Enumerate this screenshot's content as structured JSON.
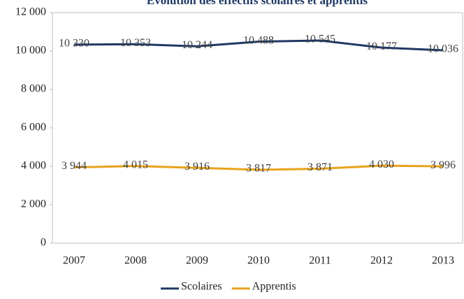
{
  "chart_data": {
    "type": "line",
    "title": "Évolution des effectifs scolaires et apprentis",
    "categories": [
      "2007",
      "2008",
      "2009",
      "2010",
      "2011",
      "2012",
      "2013"
    ],
    "series": [
      {
        "name": "Scolaires",
        "color": "#1f3864",
        "values": [
          10330,
          10353,
          10244,
          10488,
          10545,
          10177,
          10036
        ],
        "value_labels": [
          "10 330",
          "10 353",
          "10 244",
          "10 488",
          "10 545",
          "10 177",
          "10 036"
        ]
      },
      {
        "name": "Apprentis",
        "color": "#e8a31c",
        "values": [
          3944,
          4015,
          3916,
          3817,
          3871,
          4030,
          3996
        ],
        "value_labels": [
          "3 944",
          "4 015",
          "3 916",
          "3 817",
          "3 871",
          "4 030",
          "3 996"
        ]
      }
    ],
    "ylim": [
      0,
      12000
    ],
    "yticks": [
      0,
      {
        "value": 2000,
        "label": "2 000"
      },
      {
        "value": 4000,
        "label": "4 000"
      },
      {
        "value": 6000,
        "label": "6 000"
      },
      {
        "value": 8000,
        "label": "8 000"
      },
      {
        "value": 10000,
        "label": "10 000"
      },
      {
        "value": 12000,
        "label": "12 000"
      }
    ],
    "grid": false,
    "legend": "bottom"
  }
}
